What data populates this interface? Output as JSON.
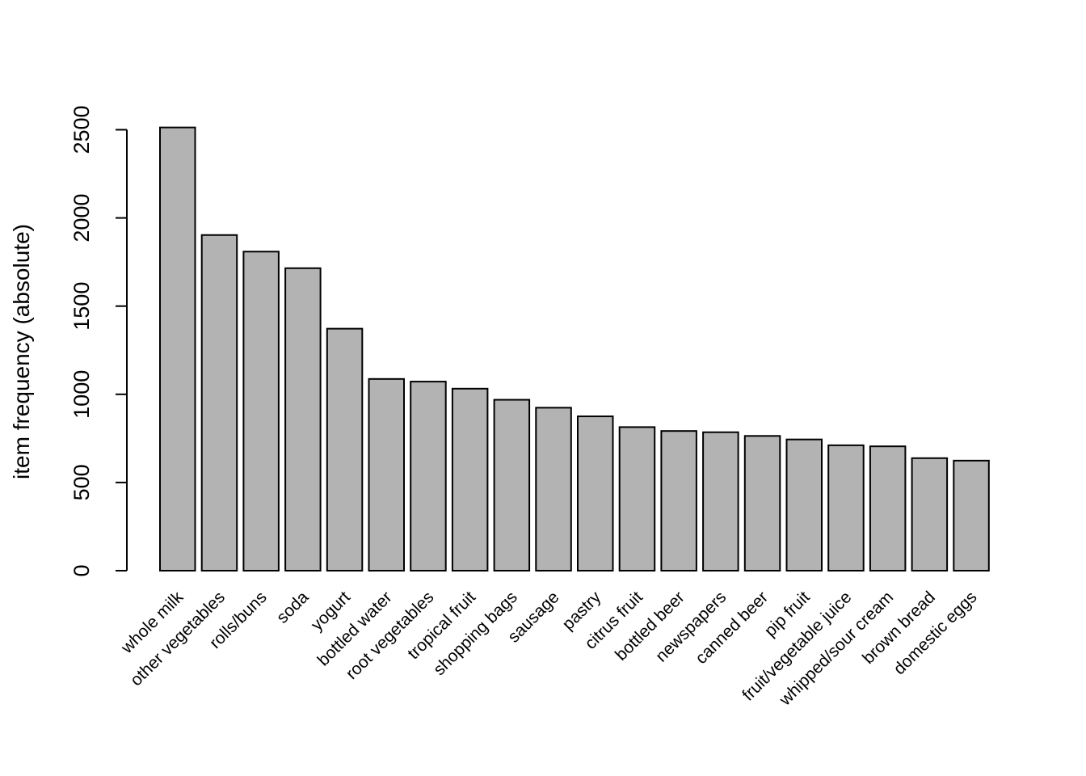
{
  "chart_data": {
    "type": "bar",
    "title": "",
    "xlabel": "",
    "ylabel": "item frequency (absolute)",
    "ylim": [
      0,
      2500
    ],
    "y_ticks": [
      0,
      500,
      1000,
      1500,
      2000,
      2500
    ],
    "grid": false,
    "legend": "none",
    "bar_color": "#b3b3b3",
    "categories": [
      "whole milk",
      "other vegetables",
      "rolls/buns",
      "soda",
      "yogurt",
      "bottled water",
      "root vegetables",
      "tropical fruit",
      "shopping bags",
      "sausage",
      "pastry",
      "citrus fruit",
      "bottled beer",
      "newspapers",
      "canned beer",
      "pip fruit",
      "fruit/vegetable juice",
      "whipped/sour cream",
      "brown bread",
      "domestic eggs"
    ],
    "values": [
      2513,
      1903,
      1809,
      1715,
      1372,
      1087,
      1072,
      1032,
      969,
      924,
      875,
      814,
      792,
      785,
      764,
      744,
      711,
      705,
      638,
      624
    ]
  }
}
